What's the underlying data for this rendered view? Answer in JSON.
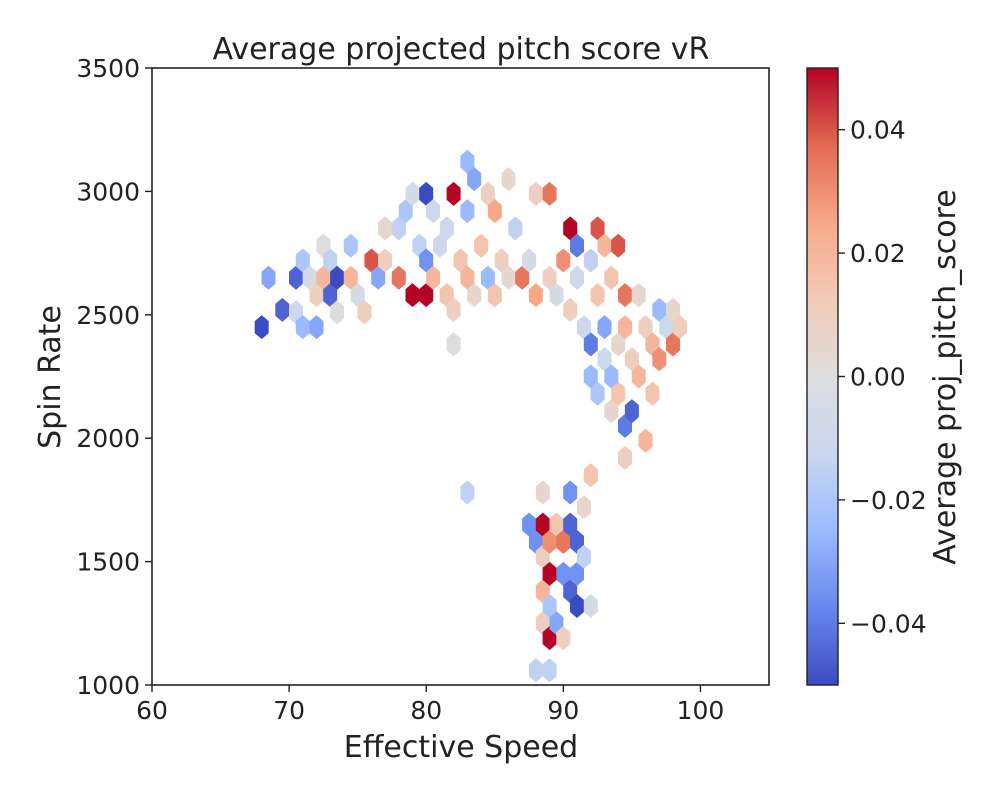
{
  "chart_data": {
    "type": "heatmap",
    "title": "Average projected pitch score vR",
    "xlabel": "Effective Speed",
    "ylabel": "Spin Rate",
    "xlim": [
      60,
      105
    ],
    "ylim": [
      1000,
      3500
    ],
    "xticks": [
      60,
      70,
      80,
      90,
      100
    ],
    "yticks": [
      1000,
      1500,
      2000,
      2500,
      3000,
      3500
    ],
    "grid": false,
    "colorbar": {
      "label": "Average proj_pitch_score",
      "min": -0.05,
      "max": 0.05,
      "ticks": [
        -0.04,
        -0.02,
        0.0,
        0.02,
        0.04
      ],
      "tick_labels": [
        "−0.04",
        "−0.02",
        "0.00",
        "0.02",
        "0.04"
      ],
      "colormap": "coolwarm",
      "colors": [
        "#3b4cc0",
        "#6788ee",
        "#9abbff",
        "#c9d7f0",
        "#dddddd",
        "#f2cbb7",
        "#f7a889",
        "#e26952",
        "#b40426"
      ]
    },
    "hexbins": [
      {
        "x": 68.0,
        "y": 2450,
        "v": -0.05
      },
      {
        "x": 68.5,
        "y": 2650,
        "v": -0.03
      },
      {
        "x": 69.5,
        "y": 2520,
        "v": -0.045
      },
      {
        "x": 70.5,
        "y": 2510,
        "v": -0.01
      },
      {
        "x": 70.5,
        "y": 2650,
        "v": -0.045
      },
      {
        "x": 71.0,
        "y": 2450,
        "v": -0.025
      },
      {
        "x": 71.0,
        "y": 2720,
        "v": -0.02
      },
      {
        "x": 71.5,
        "y": 2650,
        "v": -0.005
      },
      {
        "x": 72.0,
        "y": 2450,
        "v": -0.03
      },
      {
        "x": 72.0,
        "y": 2580,
        "v": 0.01
      },
      {
        "x": 72.5,
        "y": 2650,
        "v": 0.02
      },
      {
        "x": 72.5,
        "y": 2780,
        "v": 0.0
      },
      {
        "x": 73.0,
        "y": 2720,
        "v": -0.015
      },
      {
        "x": 73.0,
        "y": 2580,
        "v": -0.045
      },
      {
        "x": 73.5,
        "y": 2650,
        "v": -0.05
      },
      {
        "x": 73.5,
        "y": 2510,
        "v": 0.0
      },
      {
        "x": 74.5,
        "y": 2780,
        "v": -0.02
      },
      {
        "x": 74.5,
        "y": 2650,
        "v": 0.02
      },
      {
        "x": 75.0,
        "y": 2580,
        "v": -0.005
      },
      {
        "x": 75.5,
        "y": 2510,
        "v": 0.01
      },
      {
        "x": 76.0,
        "y": 2720,
        "v": 0.04
      },
      {
        "x": 76.5,
        "y": 2650,
        "v": -0.03
      },
      {
        "x": 77.0,
        "y": 2720,
        "v": 0.01
      },
      {
        "x": 77.0,
        "y": 2850,
        "v": 0.005
      },
      {
        "x": 78.0,
        "y": 2650,
        "v": 0.035
      },
      {
        "x": 78.0,
        "y": 2850,
        "v": -0.015
      },
      {
        "x": 78.5,
        "y": 2920,
        "v": -0.02
      },
      {
        "x": 79.0,
        "y": 2580,
        "v": 0.05
      },
      {
        "x": 79.0,
        "y": 2990,
        "v": -0.005
      },
      {
        "x": 79.5,
        "y": 2780,
        "v": -0.015
      },
      {
        "x": 80.0,
        "y": 2580,
        "v": 0.05
      },
      {
        "x": 80.0,
        "y": 2720,
        "v": -0.035
      },
      {
        "x": 80.0,
        "y": 2990,
        "v": -0.05
      },
      {
        "x": 80.5,
        "y": 2650,
        "v": 0.02
      },
      {
        "x": 80.5,
        "y": 2920,
        "v": -0.01
      },
      {
        "x": 81.0,
        "y": 2780,
        "v": -0.01
      },
      {
        "x": 81.5,
        "y": 2580,
        "v": 0.015
      },
      {
        "x": 81.5,
        "y": 2850,
        "v": -0.01
      },
      {
        "x": 82.0,
        "y": 2380,
        "v": 0.0
      },
      {
        "x": 82.0,
        "y": 2520,
        "v": 0.01
      },
      {
        "x": 82.0,
        "y": 2990,
        "v": 0.05
      },
      {
        "x": 82.5,
        "y": 2720,
        "v": 0.015
      },
      {
        "x": 83.0,
        "y": 2650,
        "v": 0.02
      },
      {
        "x": 83.0,
        "y": 2920,
        "v": -0.025
      },
      {
        "x": 83.0,
        "y": 1780,
        "v": -0.015
      },
      {
        "x": 83.0,
        "y": 3120,
        "v": -0.025
      },
      {
        "x": 83.5,
        "y": 2580,
        "v": 0.005
      },
      {
        "x": 83.5,
        "y": 3050,
        "v": -0.03
      },
      {
        "x": 84.0,
        "y": 2780,
        "v": 0.015
      },
      {
        "x": 84.5,
        "y": 2650,
        "v": -0.025
      },
      {
        "x": 84.5,
        "y": 2990,
        "v": 0.01
      },
      {
        "x": 85.0,
        "y": 2580,
        "v": 0.015
      },
      {
        "x": 85.0,
        "y": 2920,
        "v": 0.025
      },
      {
        "x": 85.5,
        "y": 2720,
        "v": 0.01
      },
      {
        "x": 86.0,
        "y": 2650,
        "v": 0.005
      },
      {
        "x": 86.0,
        "y": 3050,
        "v": 0.005
      },
      {
        "x": 86.5,
        "y": 2850,
        "v": -0.015
      },
      {
        "x": 87.0,
        "y": 2650,
        "v": 0.035
      },
      {
        "x": 87.5,
        "y": 2720,
        "v": -0.005
      },
      {
        "x": 87.5,
        "y": 1650,
        "v": -0.035
      },
      {
        "x": 88.0,
        "y": 2580,
        "v": 0.025
      },
      {
        "x": 88.0,
        "y": 2990,
        "v": 0.01
      },
      {
        "x": 88.0,
        "y": 1580,
        "v": -0.035
      },
      {
        "x": 88.0,
        "y": 1060,
        "v": -0.015
      },
      {
        "x": 88.5,
        "y": 1650,
        "v": 0.05
      },
      {
        "x": 88.5,
        "y": 1780,
        "v": 0.005
      },
      {
        "x": 88.5,
        "y": 1520,
        "v": 0.01
      },
      {
        "x": 88.5,
        "y": 1380,
        "v": 0.02
      },
      {
        "x": 88.5,
        "y": 1250,
        "v": 0.01
      },
      {
        "x": 89.0,
        "y": 2650,
        "v": 0.01
      },
      {
        "x": 89.0,
        "y": 1580,
        "v": 0.03
      },
      {
        "x": 89.0,
        "y": 1450,
        "v": 0.05
      },
      {
        "x": 89.0,
        "y": 1320,
        "v": -0.02
      },
      {
        "x": 89.0,
        "y": 1190,
        "v": 0.05
      },
      {
        "x": 89.0,
        "y": 1060,
        "v": -0.015
      },
      {
        "x": 89.0,
        "y": 2990,
        "v": 0.035
      },
      {
        "x": 89.5,
        "y": 2580,
        "v": -0.005
      },
      {
        "x": 89.5,
        "y": 1650,
        "v": 0.015
      },
      {
        "x": 89.5,
        "y": 1250,
        "v": -0.03
      },
      {
        "x": 90.0,
        "y": 2720,
        "v": 0.03
      },
      {
        "x": 90.0,
        "y": 1580,
        "v": 0.035
      },
      {
        "x": 90.0,
        "y": 1450,
        "v": -0.035
      },
      {
        "x": 90.0,
        "y": 1190,
        "v": 0.01
      },
      {
        "x": 90.5,
        "y": 2850,
        "v": 0.05
      },
      {
        "x": 90.5,
        "y": 1780,
        "v": -0.035
      },
      {
        "x": 90.5,
        "y": 1650,
        "v": -0.045
      },
      {
        "x": 90.5,
        "y": 1380,
        "v": -0.045
      },
      {
        "x": 90.5,
        "y": 2520,
        "v": 0.01
      },
      {
        "x": 91.0,
        "y": 2780,
        "v": -0.04
      },
      {
        "x": 91.0,
        "y": 1580,
        "v": -0.045
      },
      {
        "x": 91.0,
        "y": 1450,
        "v": -0.035
      },
      {
        "x": 91.0,
        "y": 1320,
        "v": -0.05
      },
      {
        "x": 91.0,
        "y": 2650,
        "v": -0.01
      },
      {
        "x": 91.5,
        "y": 2450,
        "v": -0.01
      },
      {
        "x": 91.5,
        "y": 1720,
        "v": 0.005
      },
      {
        "x": 91.5,
        "y": 1520,
        "v": -0.015
      },
      {
        "x": 92.0,
        "y": 2720,
        "v": -0.015
      },
      {
        "x": 92.0,
        "y": 2380,
        "v": -0.04
      },
      {
        "x": 92.0,
        "y": 2250,
        "v": -0.025
      },
      {
        "x": 92.0,
        "y": 1850,
        "v": 0.015
      },
      {
        "x": 92.0,
        "y": 1320,
        "v": -0.005
      },
      {
        "x": 92.5,
        "y": 2850,
        "v": 0.04
      },
      {
        "x": 92.5,
        "y": 2580,
        "v": 0.015
      },
      {
        "x": 92.5,
        "y": 2180,
        "v": -0.02
      },
      {
        "x": 93.0,
        "y": 2780,
        "v": 0.02
      },
      {
        "x": 93.0,
        "y": 2450,
        "v": -0.03
      },
      {
        "x": 93.0,
        "y": 2320,
        "v": -0.01
      },
      {
        "x": 93.5,
        "y": 2650,
        "v": 0.015
      },
      {
        "x": 93.5,
        "y": 2250,
        "v": -0.025
      },
      {
        "x": 93.5,
        "y": 2110,
        "v": 0.005
      },
      {
        "x": 94.0,
        "y": 2780,
        "v": 0.04
      },
      {
        "x": 94.0,
        "y": 2380,
        "v": 0.005
      },
      {
        "x": 94.0,
        "y": 2180,
        "v": 0.015
      },
      {
        "x": 94.5,
        "y": 2580,
        "v": 0.035
      },
      {
        "x": 94.5,
        "y": 2450,
        "v": 0.02
      },
      {
        "x": 94.5,
        "y": 2050,
        "v": -0.04
      },
      {
        "x": 94.5,
        "y": 1920,
        "v": 0.01
      },
      {
        "x": 95.0,
        "y": 2320,
        "v": 0.01
      },
      {
        "x": 95.0,
        "y": 2110,
        "v": -0.045
      },
      {
        "x": 95.5,
        "y": 2580,
        "v": 0.005
      },
      {
        "x": 95.5,
        "y": 2250,
        "v": 0.02
      },
      {
        "x": 96.0,
        "y": 2450,
        "v": 0.01
      },
      {
        "x": 96.0,
        "y": 1990,
        "v": 0.02
      },
      {
        "x": 96.5,
        "y": 2380,
        "v": 0.02
      },
      {
        "x": 96.5,
        "y": 2180,
        "v": 0.015
      },
      {
        "x": 97.0,
        "y": 2520,
        "v": -0.025
      },
      {
        "x": 97.0,
        "y": 2320,
        "v": 0.03
      },
      {
        "x": 97.5,
        "y": 2450,
        "v": -0.01
      },
      {
        "x": 98.0,
        "y": 2520,
        "v": 0.005
      },
      {
        "x": 98.0,
        "y": 2380,
        "v": 0.035
      },
      {
        "x": 98.5,
        "y": 2450,
        "v": 0.01
      }
    ]
  }
}
